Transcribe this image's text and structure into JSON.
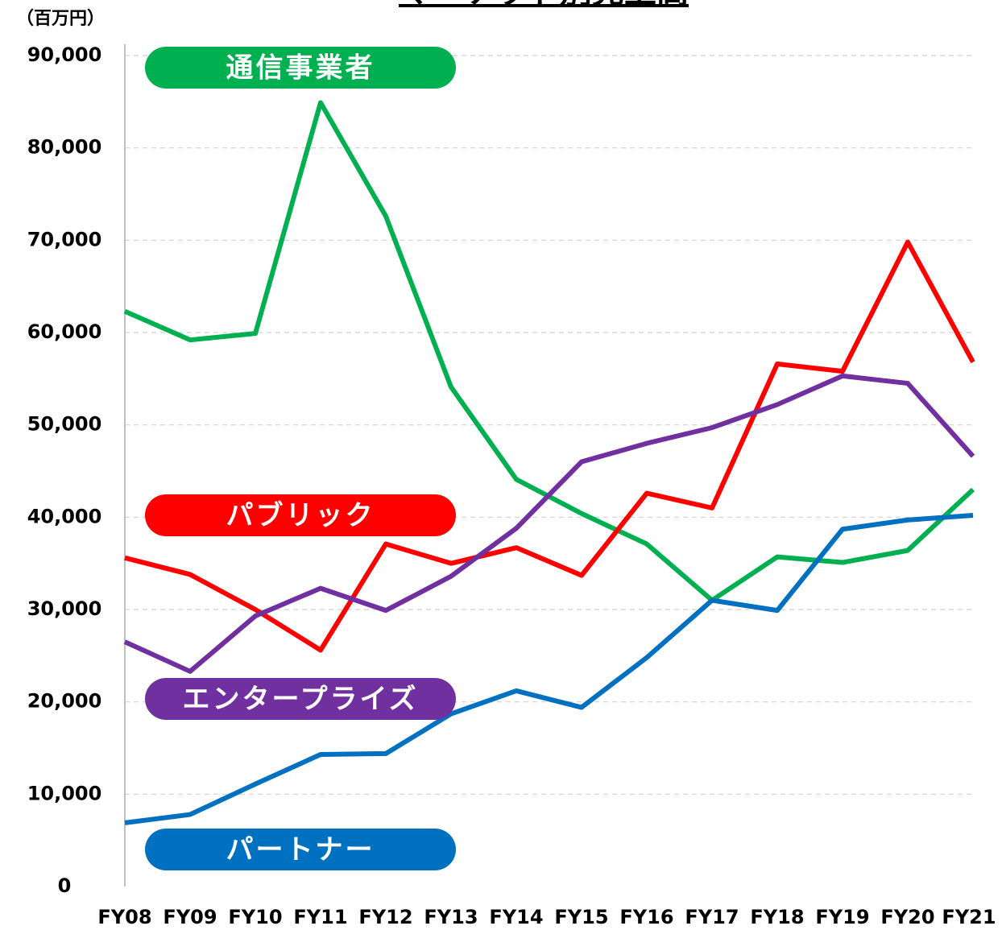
{
  "chart_data": {
    "type": "line",
    "title": "マーケット別売上高",
    "y_unit": "（百万円）",
    "categories": [
      "FY08",
      "FY09",
      "FY10",
      "FY11",
      "FY12",
      "FY13",
      "FY14",
      "FY15",
      "FY16",
      "FY17",
      "FY18",
      "FY19",
      "FY20",
      "FY21"
    ],
    "series": [
      {
        "name": "通信事業者",
        "color": "#00b050",
        "values": [
          62300,
          59200,
          59900,
          84900,
          72600,
          54100,
          44100,
          40400,
          37100,
          31000,
          35700,
          35100,
          36400,
          43000
        ]
      },
      {
        "name": "パブリック",
        "color": "#ff0000",
        "values": [
          35600,
          33800,
          30000,
          25600,
          37100,
          35000,
          36700,
          33700,
          42600,
          41000,
          56600,
          55800,
          69800,
          56800
        ]
      },
      {
        "name": "エンタープライズ",
        "color": "#7030a0",
        "values": [
          26500,
          23300,
          29300,
          32300,
          29900,
          33600,
          38800,
          46000,
          48000,
          49700,
          52200,
          55300,
          54500,
          46600
        ]
      },
      {
        "name": "パートナー",
        "color": "#0070c0",
        "values": [
          6900,
          7800,
          11100,
          14300,
          14400,
          18700,
          21200,
          19400,
          24800,
          31000,
          29900,
          38700,
          39700,
          40200
        ]
      }
    ],
    "ylim": [
      0,
      90000
    ],
    "yticks": [
      0,
      {
        "value": 10000,
        "label": "10,000"
      },
      {
        "value": 20000,
        "label": "20,000"
      },
      {
        "value": 30000,
        "label": "30,000"
      },
      {
        "value": 40000,
        "label": "40,000"
      },
      {
        "value": 50000,
        "label": "50,000"
      },
      {
        "value": 60000,
        "label": "60,000"
      },
      {
        "value": 70000,
        "label": "70,000"
      },
      {
        "value": 80000,
        "label": "80,000"
      },
      {
        "value": 90000,
        "label": "90,000"
      }
    ],
    "grid": true
  }
}
